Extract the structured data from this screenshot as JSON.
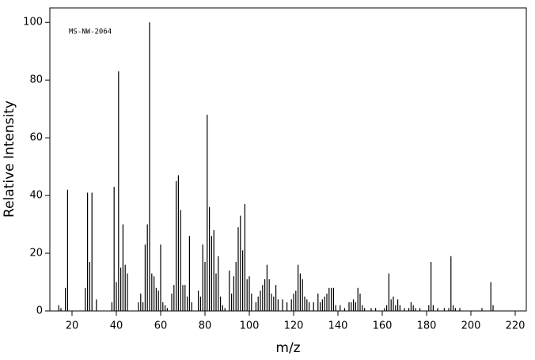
{
  "chart_data": {
    "type": "stem",
    "annotation": "MS-NW-2064",
    "xlabel": "m/z",
    "ylabel": "Relative Intensity",
    "color": "#000000",
    "xlim": [
      10,
      225
    ],
    "ylim": [
      0,
      105
    ],
    "xticks": [
      20,
      40,
      60,
      80,
      100,
      120,
      140,
      160,
      180,
      200,
      220
    ],
    "yticks": [
      0,
      20,
      40,
      60,
      80,
      100
    ],
    "x": [
      14,
      15,
      17,
      18,
      26,
      27,
      28,
      29,
      31,
      38,
      39,
      40,
      41,
      42,
      43,
      44,
      45,
      50,
      51,
      52,
      53,
      54,
      55,
      56,
      57,
      58,
      59,
      60,
      61,
      62,
      63,
      65,
      66,
      67,
      68,
      69,
      70,
      71,
      72,
      73,
      74,
      77,
      78,
      79,
      80,
      81,
      82,
      83,
      84,
      85,
      86,
      87,
      88,
      89,
      91,
      92,
      93,
      94,
      95,
      96,
      97,
      98,
      99,
      100,
      101,
      103,
      104,
      105,
      106,
      107,
      108,
      109,
      110,
      111,
      112,
      113,
      115,
      117,
      119,
      120,
      121,
      122,
      123,
      124,
      125,
      126,
      127,
      129,
      131,
      132,
      133,
      134,
      135,
      136,
      137,
      138,
      139,
      141,
      143,
      145,
      146,
      147,
      148,
      149,
      150,
      151,
      152,
      155,
      157,
      161,
      162,
      163,
      164,
      165,
      166,
      167,
      168,
      170,
      172,
      173,
      174,
      175,
      177,
      181,
      182,
      183,
      185,
      188,
      190,
      191,
      192,
      193,
      195,
      205,
      209,
      210
    ],
    "values": [
      2,
      1,
      8,
      42,
      8,
      41,
      17,
      41,
      4,
      3,
      43,
      10,
      83,
      15,
      30,
      16,
      13,
      3,
      6,
      3,
      23,
      30,
      100,
      13,
      12,
      8,
      7,
      23,
      3,
      2,
      1,
      6,
      9,
      45,
      47,
      35,
      9,
      9,
      5,
      26,
      3,
      7,
      5,
      23,
      17,
      68,
      36,
      26,
      28,
      13,
      19,
      5,
      2,
      1,
      14,
      6,
      12,
      17,
      29,
      33,
      21,
      37,
      11,
      12,
      6,
      3,
      5,
      7,
      9,
      11,
      16,
      11,
      6,
      5,
      9,
      4,
      4,
      3,
      4,
      6,
      7,
      16,
      13,
      11,
      5,
      4,
      3,
      3,
      6,
      3,
      4,
      5,
      6,
      8,
      8,
      8,
      2,
      2,
      1,
      3,
      3,
      4,
      3,
      8,
      6,
      2,
      1,
      1,
      1,
      1,
      2,
      13,
      4,
      5,
      2,
      4,
      2,
      1,
      1,
      3,
      2,
      1,
      1,
      2,
      17,
      2,
      1,
      1,
      1,
      19,
      2,
      1,
      1,
      1,
      10,
      2
    ]
  }
}
